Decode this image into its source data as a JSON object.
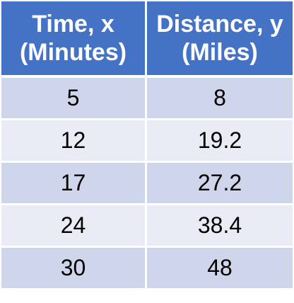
{
  "chart_data": {
    "type": "table",
    "columns": [
      {
        "line1": "Time, x",
        "line2": "(Minutes)"
      },
      {
        "line1": "Distance, y",
        "line2": "(Miles)"
      }
    ],
    "rows": [
      [
        "5",
        "8"
      ],
      [
        "12",
        "19.2"
      ],
      [
        "17",
        "27.2"
      ],
      [
        "24",
        "38.4"
      ],
      [
        "30",
        "48"
      ]
    ]
  },
  "colors": {
    "header": "#4472c4",
    "band_a": "#cfd5ea",
    "band_b": "#e9ebf5",
    "header_text": "#ffffff"
  }
}
